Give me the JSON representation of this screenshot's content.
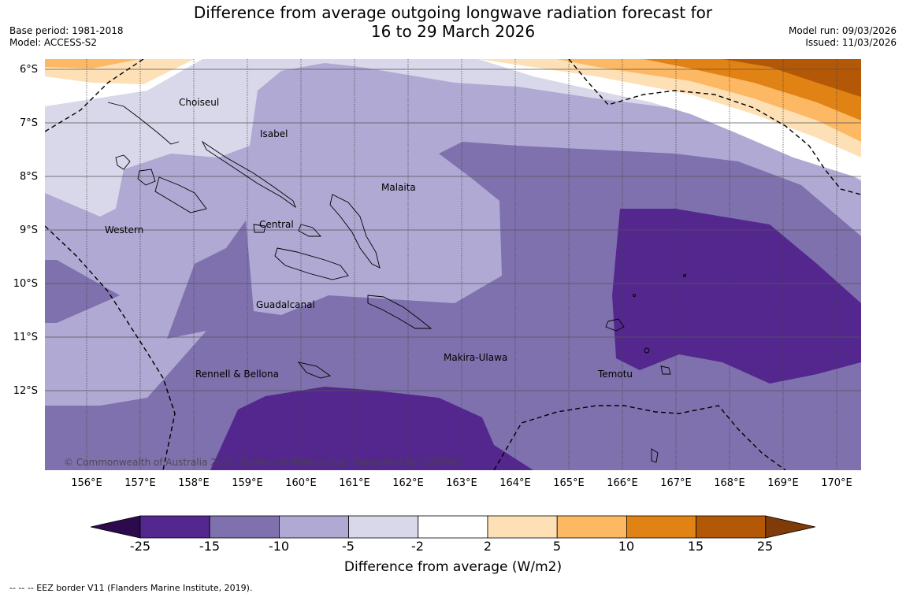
{
  "title": {
    "line1": "Difference from average outgoing longwave radiation forecast for",
    "line2": "16 to 29 March 2026"
  },
  "meta_left": {
    "base_period": "Base period: 1981-2018",
    "model": "Model: ACCESS-S2"
  },
  "meta_right": {
    "model_run": "Model run: 09/03/2026",
    "issued": "Issued: 11/03/2026"
  },
  "axes": {
    "lat_labels": [
      "6°S",
      "7°S",
      "8°S",
      "9°S",
      "10°S",
      "11°S",
      "12°S"
    ],
    "lon_labels": [
      "156°E",
      "157°E",
      "158°E",
      "159°E",
      "160°E",
      "161°E",
      "162°E",
      "163°E",
      "164°E",
      "165°E",
      "166°E",
      "167°E",
      "168°E",
      "169°E",
      "170°E"
    ]
  },
  "provinces": [
    "Choiseul",
    "Isabel",
    "Malaita",
    "Western",
    "Central",
    "Guadalcanal",
    "Makira-Ulawa",
    "Rennell & Bellona",
    "Temotu"
  ],
  "copyright": "© Commonwealth of Australia 2026, Bureau of Meteorology, supported by COSPPac",
  "colorbar": {
    "ticks": [
      "-25",
      "-15",
      "-10",
      "-5",
      "-2",
      "2",
      "5",
      "10",
      "15",
      "25"
    ],
    "colors": {
      "below_min": "#2d0a4e",
      "b_m25_m15": "#54278f",
      "b_m15_m10": "#7e71ad",
      "b_m10_m5": "#afa9d3",
      "b_m5_m2": "#d8d8ea",
      "b_m2_2": "#ffffff",
      "b_2_5": "#fee0b6",
      "b_5_10": "#fdb863",
      "b_10_15": "#e08214",
      "b_15_25": "#b35806",
      "above_max": "#7f3b08"
    },
    "label": "Difference from average (W/m2)"
  },
  "footnote": "--  --  -- EEZ border V11 (Flanders Marine Institute, 2019)."
}
